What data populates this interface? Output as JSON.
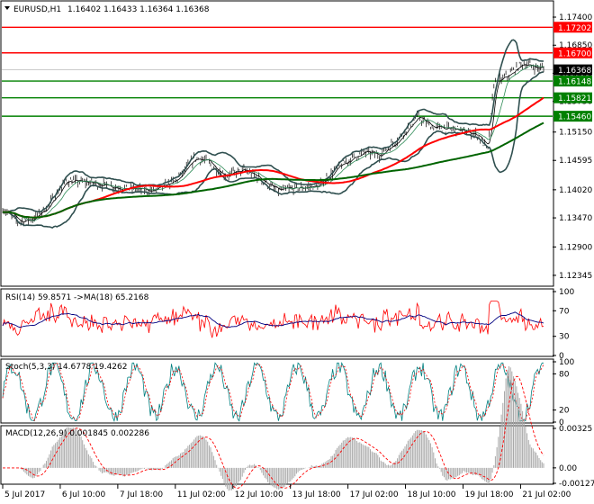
{
  "chart_data": [
    {
      "type": "candlestick",
      "header": {
        "symbol": "EURUSD,H1",
        "ohlc": "1.16402 1.16433 1.16364 1.16368"
      },
      "y_ticks": [
        "1.17400",
        "1.16850",
        "1.16300",
        "1.15750",
        "1.15150",
        "1.14595",
        "1.14020",
        "1.13470",
        "1.12900",
        "1.12345"
      ],
      "ylim": [
        1.1215,
        1.177
      ],
      "price_lines": [
        {
          "label": "1.17202",
          "value": 1.17202,
          "color": "#ff0000"
        },
        {
          "label": "1.16700",
          "value": 1.167,
          "color": "#ff0000"
        },
        {
          "label": "1.16368",
          "value": 1.16368,
          "color": "#000000"
        },
        {
          "label": "1.16148",
          "value": 1.16148,
          "color": "#008000"
        },
        {
          "label": "1.15821",
          "value": 1.15821,
          "color": "#008000"
        },
        {
          "label": "1.15460",
          "value": 1.1546,
          "color": "#008000"
        }
      ],
      "close_anchors": [
        [
          0,
          1.1365
        ],
        [
          10,
          1.134
        ],
        [
          20,
          1.1345
        ],
        [
          30,
          1.137
        ],
        [
          42,
          1.142
        ],
        [
          60,
          1.1415
        ],
        [
          80,
          1.1405
        ],
        [
          100,
          1.14
        ],
        [
          115,
          1.142
        ],
        [
          128,
          1.1465
        ],
        [
          135,
          1.1458
        ],
        [
          148,
          1.143
        ],
        [
          160,
          1.144
        ],
        [
          170,
          1.1425
        ],
        [
          182,
          1.14
        ],
        [
          195,
          1.1405
        ],
        [
          210,
          1.141
        ],
        [
          220,
          1.144
        ],
        [
          232,
          1.1465
        ],
        [
          240,
          1.1475
        ],
        [
          250,
          1.147
        ],
        [
          262,
          1.15
        ],
        [
          275,
          1.1545
        ],
        [
          285,
          1.1525
        ],
        [
          300,
          1.152
        ],
        [
          315,
          1.151
        ],
        [
          322,
          1.148
        ],
        [
          326,
          1.161
        ],
        [
          335,
          1.1625
        ],
        [
          345,
          1.165
        ],
        [
          355,
          1.164
        ]
      ]
    },
    {
      "type": "line",
      "header": "RSI(14) 59.8571  ->MA(18) 65.2168",
      "y_ticks": [
        "100",
        "70",
        "30",
        "0"
      ],
      "ylim": [
        0,
        100
      ]
    },
    {
      "type": "line",
      "header": "Stoch(5,3,3) 14.6778 19.4262",
      "y_ticks": [
        "100",
        "80",
        "20",
        "0"
      ],
      "ylim": [
        0,
        100
      ]
    },
    {
      "type": "bar",
      "header": "MACD(12,26,9) 0.001845 0.002286",
      "y_ticks": [
        "0.00325",
        "0.00",
        "-0.00127"
      ],
      "ylim": [
        -0.00127,
        0.00325
      ]
    }
  ],
  "x_ticks": [
    "5 Jul 2017",
    "6 Jul 10:00",
    "7 Jul 18:00",
    "11 Jul 02:00",
    "12 Jul 10:00",
    "13 Jul 18:00",
    "17 Jul 02:00",
    "18 Jul 10:00",
    "19 Jul 18:00",
    "21 Jul 02:00"
  ]
}
